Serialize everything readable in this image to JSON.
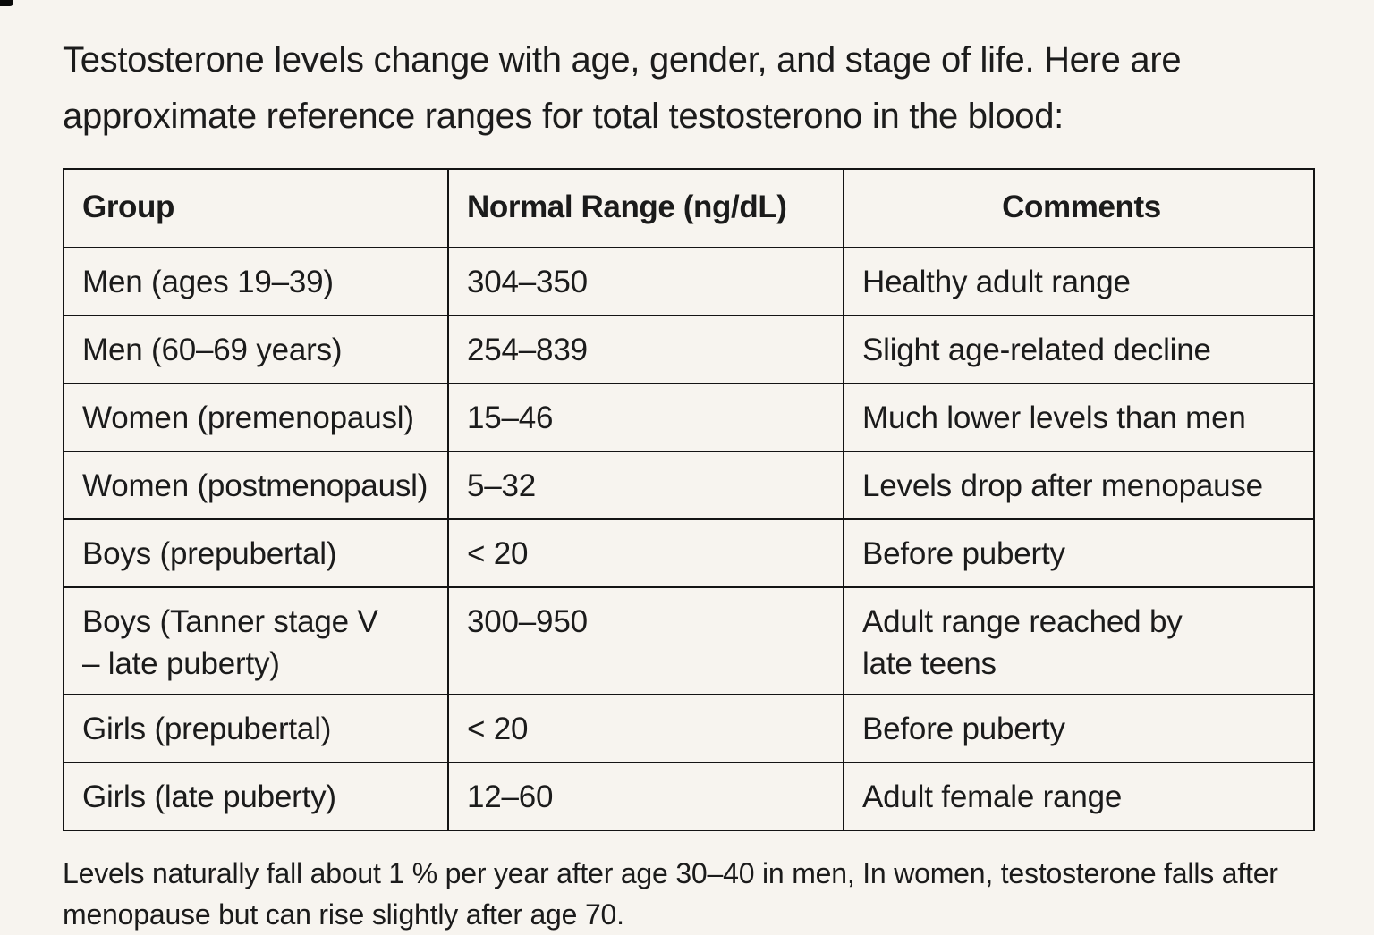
{
  "colors": {
    "background": "#f7f4ef",
    "text": "#1b1b1b",
    "border": "#141414"
  },
  "title": "Testosterone levels change with age, gender, and stage of life. Here are approximate reference ranges for total testosterono in the blood:",
  "table": {
    "columns": [
      "Group",
      "Normal Range (ng/dL)",
      "Comments"
    ],
    "rows": [
      [
        "Men (ages 19–39)",
        "304–350",
        "Healthy adult range"
      ],
      [
        "Men (60–69 years)",
        "254–839",
        "Slight age-related decline"
      ],
      [
        "Women (premenopausl)",
        "15–46",
        "Much lower levels than men"
      ],
      [
        "Women (postmenopausl)",
        "5–32",
        "Levels drop after menopause"
      ],
      [
        "Boys (prepubertal)",
        "< 20",
        "Before puberty"
      ],
      [
        "Boys (Tanner stage V\n– late puberty)",
        "300–950",
        "Adult range reached by\nlate teens"
      ],
      [
        "Girls (prepubertal)",
        "< 20",
        "Before puberty"
      ],
      [
        "Girls (late puberty)",
        "12–60",
        "Adult female range"
      ]
    ]
  },
  "footnote": "Levels naturally fall about 1 % per year after age 30–40 in men, In women, testosterone falls after menopause but can rise slightly after age 70."
}
